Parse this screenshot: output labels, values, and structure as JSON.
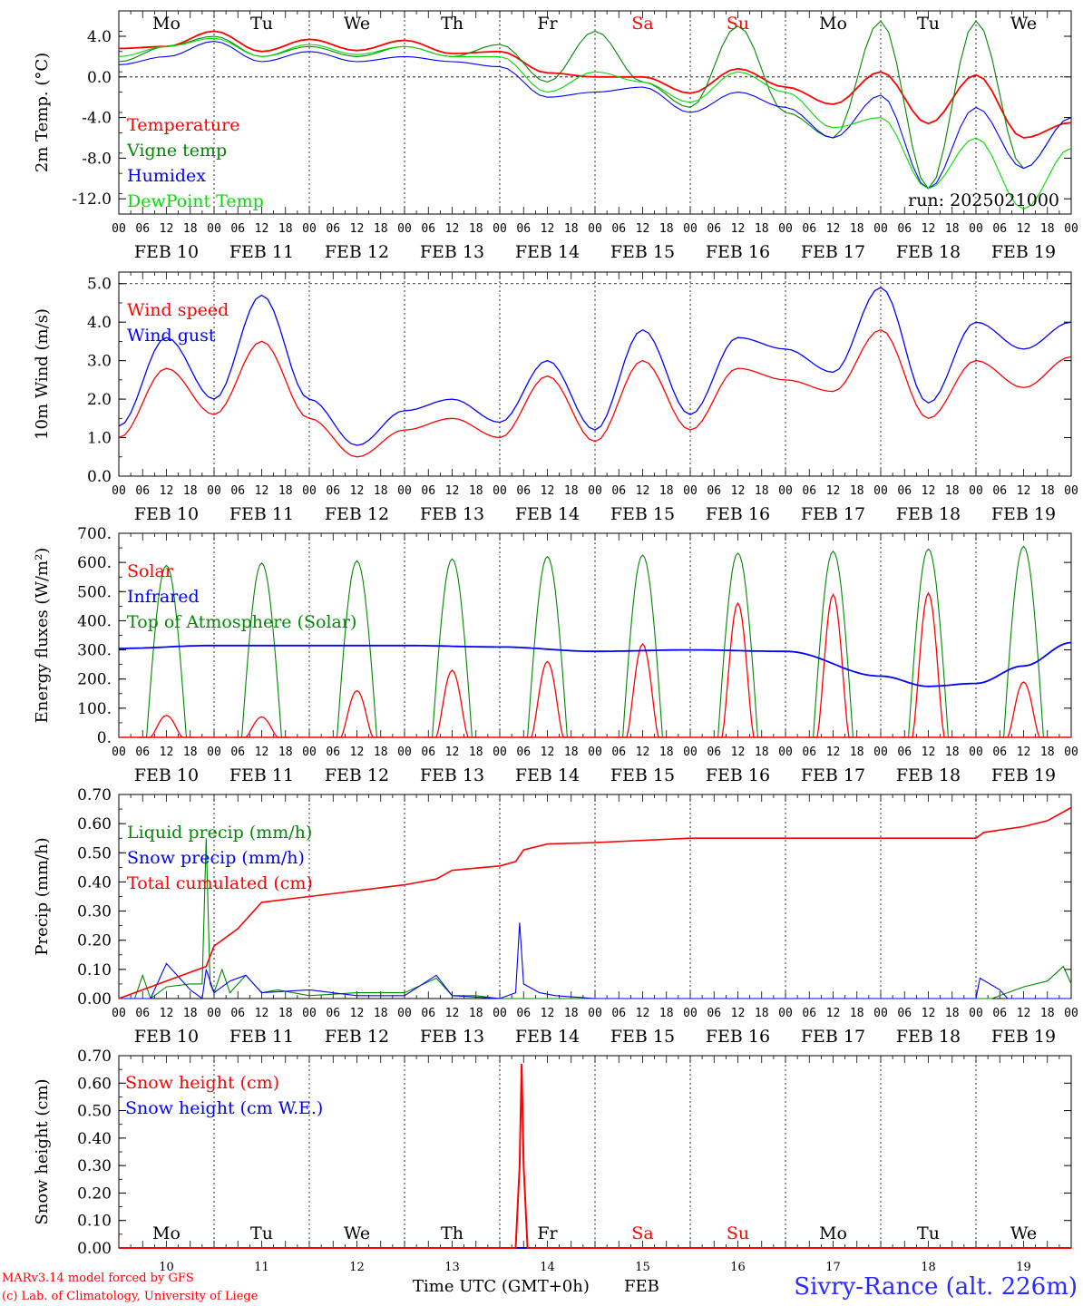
{
  "run_label": "run: 2025021000",
  "station": "Sivry-Rance (alt. 226m)",
  "footer_model": "MARv3.14 model forced by GFS",
  "footer_lab": "(c) Lab. of Climatology, University of Liege",
  "time_axis_title": "Time UTC (GMT+0h)",
  "month_label": "FEB",
  "hour_ticks": [
    "00",
    "06",
    "12",
    "18"
  ],
  "date_labels": [
    "FEB 10",
    "FEB 11",
    "FEB 12",
    "FEB 13",
    "FEB 14",
    "FEB 15",
    "FEB 16",
    "FEB 17",
    "FEB 18",
    "FEB 19"
  ],
  "day_numbers": [
    "10",
    "11",
    "12",
    "13",
    "14",
    "15",
    "16",
    "17",
    "18",
    "19"
  ],
  "weekdays": [
    {
      "name": "Mo",
      "weekend": false
    },
    {
      "name": "Tu",
      "weekend": false
    },
    {
      "name": "We",
      "weekend": false
    },
    {
      "name": "Th",
      "weekend": false
    },
    {
      "name": "Fr",
      "weekend": false
    },
    {
      "name": "Sa",
      "weekend": true
    },
    {
      "name": "Su",
      "weekend": true
    },
    {
      "name": "Mo",
      "weekend": false
    },
    {
      "name": "Tu",
      "weekend": false
    },
    {
      "name": "We",
      "weekend": false
    }
  ],
  "colors": {
    "red": "#ff0000",
    "green": "#008800",
    "blue": "#0000ff",
    "lightgreen": "#00dd00",
    "weekend": "#ff0000"
  },
  "chart_data": [
    {
      "id": "temp",
      "type": "line",
      "ylabel": "2m Temp. (°C)",
      "ylim": [
        -13.5,
        6.5
      ],
      "yticks": [
        "4.0",
        "0.0",
        "-4.0",
        "-8.0",
        "-12.0"
      ],
      "ytick_values": [
        4,
        0,
        -4,
        -8,
        -12
      ],
      "ref_lines": [
        0
      ],
      "x_hours": [
        0,
        12,
        24,
        36,
        48,
        60,
        72,
        84,
        96,
        108,
        120,
        132,
        144,
        156,
        168,
        180,
        192,
        204,
        216,
        228,
        240
      ],
      "series": [
        {
          "name": "Temperature",
          "color": "red",
          "values": [
            2.8,
            3.0,
            4.5,
            2.5,
            3.7,
            2.6,
            3.6,
            2.3,
            2.5,
            0.4,
            0.0,
            0.0,
            -1.6,
            0.8,
            -1.0,
            -2.7,
            0.5,
            -4.6,
            0.2,
            -6.0,
            -4.5
          ]
        },
        {
          "name": "Vigne temp",
          "color": "green",
          "values": [
            1.5,
            3.0,
            4.0,
            2.0,
            3.0,
            2.0,
            3.0,
            2.0,
            3.2,
            -0.5,
            4.5,
            -0.5,
            -3.0,
            5.0,
            -3.5,
            -6.0,
            5.5,
            -11.0,
            5.5,
            -9.0,
            -4.0
          ]
        },
        {
          "name": "Humidex",
          "color": "blue",
          "values": [
            1.2,
            2.0,
            3.5,
            1.5,
            2.5,
            1.5,
            2.0,
            1.5,
            1.0,
            -2.0,
            -1.5,
            -1.0,
            -3.5,
            -1.5,
            -3.0,
            -6.0,
            -1.8,
            -11.0,
            -3.0,
            -9.0,
            -4.0
          ]
        },
        {
          "name": "DewPoint Temp",
          "color": "lightgreen",
          "values": [
            2.0,
            3.0,
            3.8,
            2.0,
            3.2,
            2.2,
            3.0,
            2.0,
            2.0,
            -1.5,
            0.5,
            -0.5,
            -2.5,
            0.5,
            -1.5,
            -5.0,
            -4.0,
            -11.0,
            -6.0,
            -13.0,
            -7.0
          ]
        }
      ]
    },
    {
      "id": "wind",
      "type": "line",
      "ylabel": "10m Wind (m/s)",
      "ylim": [
        0,
        5.3
      ],
      "yticks": [
        "0.0",
        "1.0",
        "2.0",
        "3.0",
        "4.0",
        "5.0"
      ],
      "ytick_values": [
        0,
        1,
        2,
        3,
        4,
        5
      ],
      "ref_lines": [
        5
      ],
      "x_hours": [
        0,
        12,
        24,
        36,
        48,
        60,
        72,
        84,
        96,
        108,
        120,
        132,
        144,
        156,
        168,
        180,
        192,
        204,
        216,
        228,
        240
      ],
      "series": [
        {
          "name": "Wind speed",
          "color": "red",
          "values": [
            1.0,
            2.8,
            1.6,
            3.5,
            1.5,
            0.5,
            1.2,
            1.5,
            1.0,
            2.6,
            0.9,
            3.0,
            1.2,
            2.8,
            2.5,
            2.2,
            3.8,
            1.5,
            3.0,
            2.3,
            3.1
          ]
        },
        {
          "name": "Wind gust",
          "color": "blue",
          "values": [
            1.3,
            3.6,
            2.0,
            4.7,
            2.0,
            0.8,
            1.7,
            2.0,
            1.4,
            3.0,
            1.2,
            3.8,
            1.6,
            3.6,
            3.3,
            2.7,
            4.9,
            1.9,
            4.0,
            3.3,
            4.0
          ]
        }
      ]
    },
    {
      "id": "flux",
      "type": "line",
      "ylabel": "Energy fluxes (W/m²)",
      "ylim": [
        0,
        700
      ],
      "yticks": [
        "0.",
        "100.",
        "200.",
        "300.",
        "400.",
        "500.",
        "600.",
        "700."
      ],
      "ytick_values": [
        0,
        100,
        200,
        300,
        400,
        500,
        600,
        700
      ],
      "ref_lines": [],
      "toa_peaks": [
        590,
        598,
        605,
        612,
        620,
        625,
        632,
        638,
        646,
        655
      ],
      "solar_peaks": [
        75,
        70,
        160,
        230,
        260,
        320,
        460,
        490,
        495,
        190
      ],
      "infrared_hours": [
        0,
        24,
        48,
        72,
        96,
        120,
        144,
        168,
        192,
        204,
        216,
        228,
        240
      ],
      "infrared_values": [
        305,
        315,
        315,
        315,
        310,
        295,
        300,
        295,
        210,
        175,
        185,
        245,
        325
      ],
      "series": [
        {
          "name": "Solar",
          "color": "red"
        },
        {
          "name": "Infrared",
          "color": "blue"
        },
        {
          "name": "Top of Atmosphere (Solar)",
          "color": "green"
        }
      ]
    },
    {
      "id": "precip",
      "type": "line",
      "ylabel": "Precip (mm/h)",
      "ylim": [
        0,
        0.7
      ],
      "yticks": [
        "0.00",
        "0.10",
        "0.20",
        "0.30",
        "0.40",
        "0.50",
        "0.60",
        "0.70"
      ],
      "ytick_values": [
        0,
        0.1,
        0.2,
        0.3,
        0.4,
        0.5,
        0.6,
        0.7
      ],
      "ref_lines": [],
      "series": [
        {
          "name": "Liquid precip (mm/h)",
          "color": "green",
          "x_hours": [
            0,
            4,
            6,
            8,
            12,
            18,
            21,
            22,
            23,
            24,
            26,
            28,
            32,
            36,
            40,
            48,
            60,
            72,
            80,
            84,
            90,
            96,
            120,
            216,
            220,
            228,
            234,
            238,
            240
          ],
          "values": [
            0,
            0,
            0.08,
            0,
            0.04,
            0.05,
            0.05,
            0.55,
            0.05,
            0.02,
            0.1,
            0.02,
            0.08,
            0.02,
            0.03,
            0.01,
            0.02,
            0.02,
            0.07,
            0.01,
            0.01,
            0,
            0,
            0,
            0,
            0.04,
            0.06,
            0.11,
            0.05
          ]
        },
        {
          "name": "Snow precip (mm/h)",
          "color": "blue",
          "x_hours": [
            0,
            8,
            12,
            18,
            21,
            22,
            24,
            28,
            32,
            36,
            48,
            60,
            72,
            80,
            84,
            96,
            100,
            101,
            102,
            106,
            110,
            120,
            216,
            217,
            222,
            224,
            240
          ],
          "values": [
            0,
            0,
            0.12,
            0.03,
            0,
            0.1,
            0.02,
            0.06,
            0.08,
            0.02,
            0.03,
            0.01,
            0.01,
            0.08,
            0.01,
            0,
            0.02,
            0.26,
            0.05,
            0.02,
            0.01,
            0,
            0,
            0.07,
            0.03,
            0,
            0
          ]
        },
        {
          "name": "Total cumulated (cm)",
          "color": "red",
          "x_hours": [
            0,
            8,
            16,
            22,
            24,
            30,
            36,
            48,
            60,
            72,
            80,
            84,
            96,
            100,
            102,
            108,
            120,
            144,
            168,
            192,
            216,
            218,
            228,
            234,
            240
          ],
          "values": [
            0,
            0.04,
            0.08,
            0.11,
            0.18,
            0.24,
            0.33,
            0.35,
            0.37,
            0.39,
            0.41,
            0.44,
            0.455,
            0.47,
            0.51,
            0.53,
            0.535,
            0.55,
            0.55,
            0.55,
            0.55,
            0.57,
            0.59,
            0.61,
            0.655
          ]
        }
      ]
    },
    {
      "id": "snow",
      "type": "line",
      "ylabel": "Snow height (cm)",
      "ylim": [
        0,
        0.7
      ],
      "yticks": [
        "0.00",
        "0.10",
        "0.20",
        "0.30",
        "0.40",
        "0.50",
        "0.60",
        "0.70"
      ],
      "ytick_values": [
        0,
        0.1,
        0.2,
        0.3,
        0.4,
        0.5,
        0.6,
        0.7
      ],
      "ref_lines": [],
      "series": [
        {
          "name": "Snow height (cm)",
          "color": "red",
          "x_hours": [
            0,
            100,
            101,
            101.5,
            102,
            103,
            240
          ],
          "values": [
            0,
            0,
            0.3,
            0.67,
            0.3,
            0,
            0
          ]
        },
        {
          "name": "Snow height (cm W.E.)",
          "color": "blue",
          "x_hours": [
            0,
            240
          ],
          "values": [
            0,
            0
          ]
        }
      ]
    }
  ]
}
